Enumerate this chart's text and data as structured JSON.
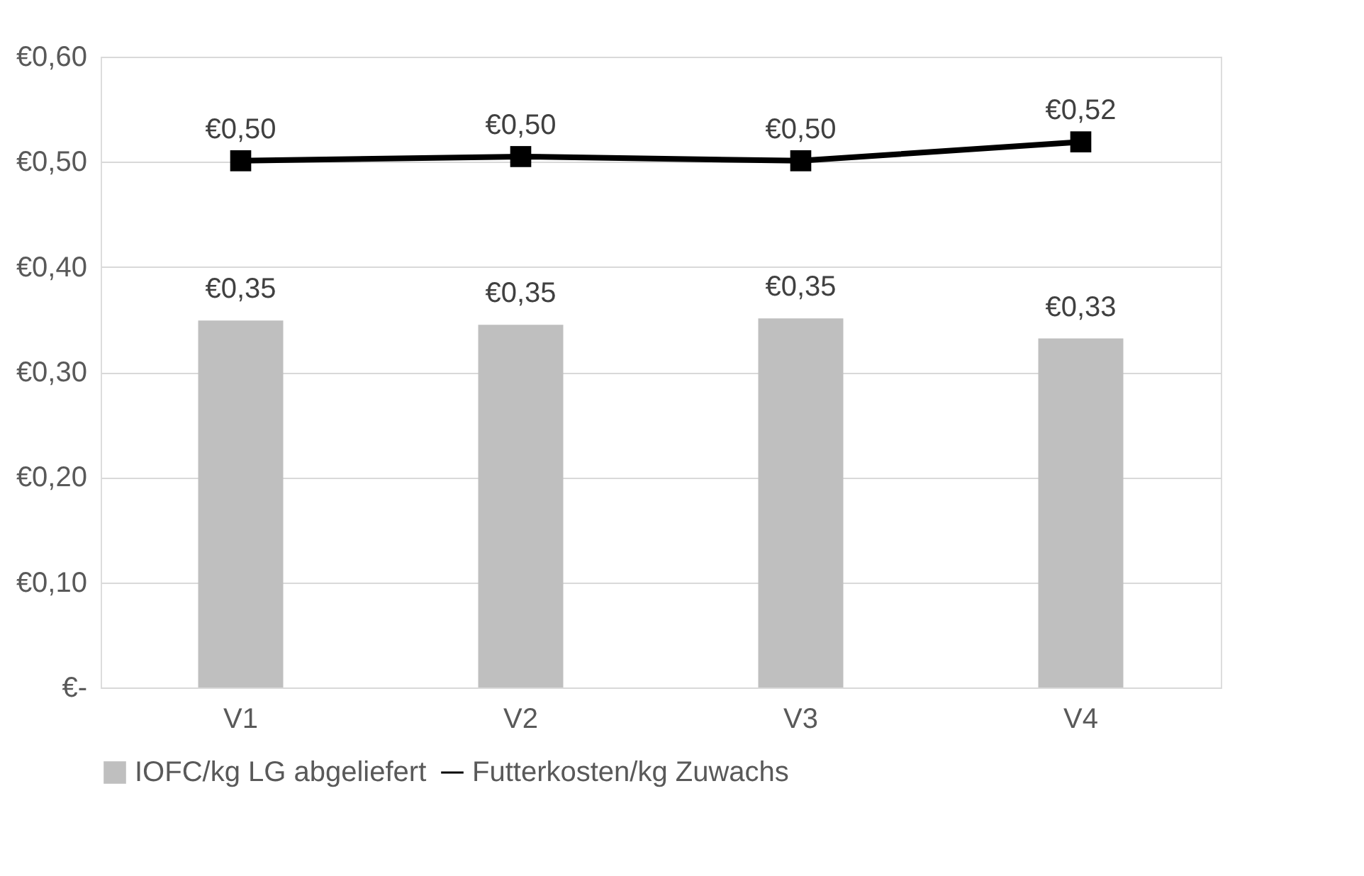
{
  "chart_data": {
    "type": "bar",
    "categories": [
      "V1",
      "V2",
      "V3",
      "V4"
    ],
    "series": [
      {
        "name": "IOFC/kg LG abgeliefert",
        "color": "#bfbfbf",
        "values": [
          0.349,
          0.345,
          0.351,
          0.332
        ],
        "value_labels": [
          "€0,35",
          "€0,35",
          "€0,35",
          "€0,33"
        ]
      },
      {
        "name": "Futterkosten/kg Zuwachs",
        "type": "line",
        "color": "#000000",
        "marker": "square",
        "line_style": "solid",
        "values": [
          0.501,
          0.505,
          0.501,
          0.519
        ],
        "value_labels": [
          "€0,50",
          "€0,50",
          "€0,50",
          "€0,52"
        ]
      }
    ],
    "ylim": [
      0,
      0.6
    ],
    "yticks": [
      {
        "value": 0,
        "label": "€-"
      },
      {
        "value": 0.1,
        "label": "€0,10"
      },
      {
        "value": 0.2,
        "label": "€0,20"
      },
      {
        "value": 0.3,
        "label": "€0,30"
      },
      {
        "value": 0.4,
        "label": "€0,40"
      },
      {
        "value": 0.5,
        "label": "€0,50"
      },
      {
        "value": 0.6,
        "label": "€0,60"
      }
    ],
    "grid": "y",
    "legend": "bottom"
  }
}
